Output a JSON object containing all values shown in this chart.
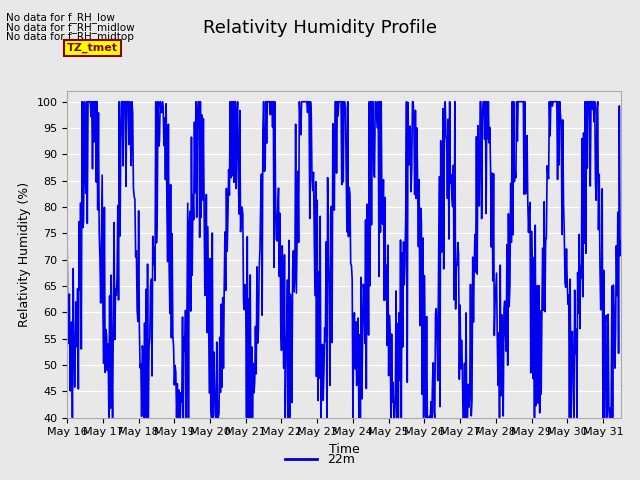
{
  "title": "Relativity Humidity Profile",
  "xlabel": "Time",
  "ylabel": "Relativity Humidity (%)",
  "ylim": [
    40,
    102
  ],
  "yticks": [
    40,
    45,
    50,
    55,
    60,
    65,
    70,
    75,
    80,
    85,
    90,
    95,
    100
  ],
  "line_color": "#0000EE",
  "line_width": 1.2,
  "legend_label": "22m",
  "legend_color": "#0000CC",
  "bg_color": "#E8E8E8",
  "annotations": [
    "No data for f_RH_low",
    "No data for f_RH_midlow",
    "No data for f_RH_midtop"
  ],
  "tz_label": "TZ_tmet",
  "title_fontsize": 13,
  "axis_fontsize": 9,
  "tick_fontsize": 8
}
